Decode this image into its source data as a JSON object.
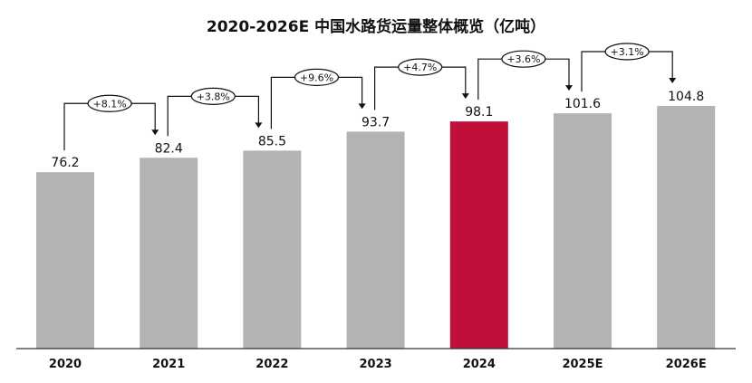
{
  "chart_data": {
    "type": "bar",
    "title": "2020-2026E 中国水路货运量整体概览（亿吨）",
    "categories": [
      "2020",
      "2021",
      "2022",
      "2023",
      "2024",
      "2025E",
      "2026E"
    ],
    "values": [
      76.2,
      82.4,
      85.5,
      93.7,
      98.1,
      101.6,
      104.8
    ],
    "value_labels": [
      "76.2",
      "82.4",
      "85.5",
      "93.7",
      "98.1",
      "101.6",
      "104.8"
    ],
    "growth_labels": [
      "+8.1%",
      "+3.8%",
      "+9.6%",
      "+4.7%",
      "+3.6%",
      "+3.1%"
    ],
    "highlight_category": "2024",
    "colors": {
      "bar": "#b3b3b3",
      "highlight": "#c0103a",
      "axis": "#333333",
      "text": "#111111"
    },
    "ylim": [
      0,
      104.8
    ],
    "grid": false,
    "legend": "none",
    "xlabel": "",
    "ylabel": ""
  }
}
